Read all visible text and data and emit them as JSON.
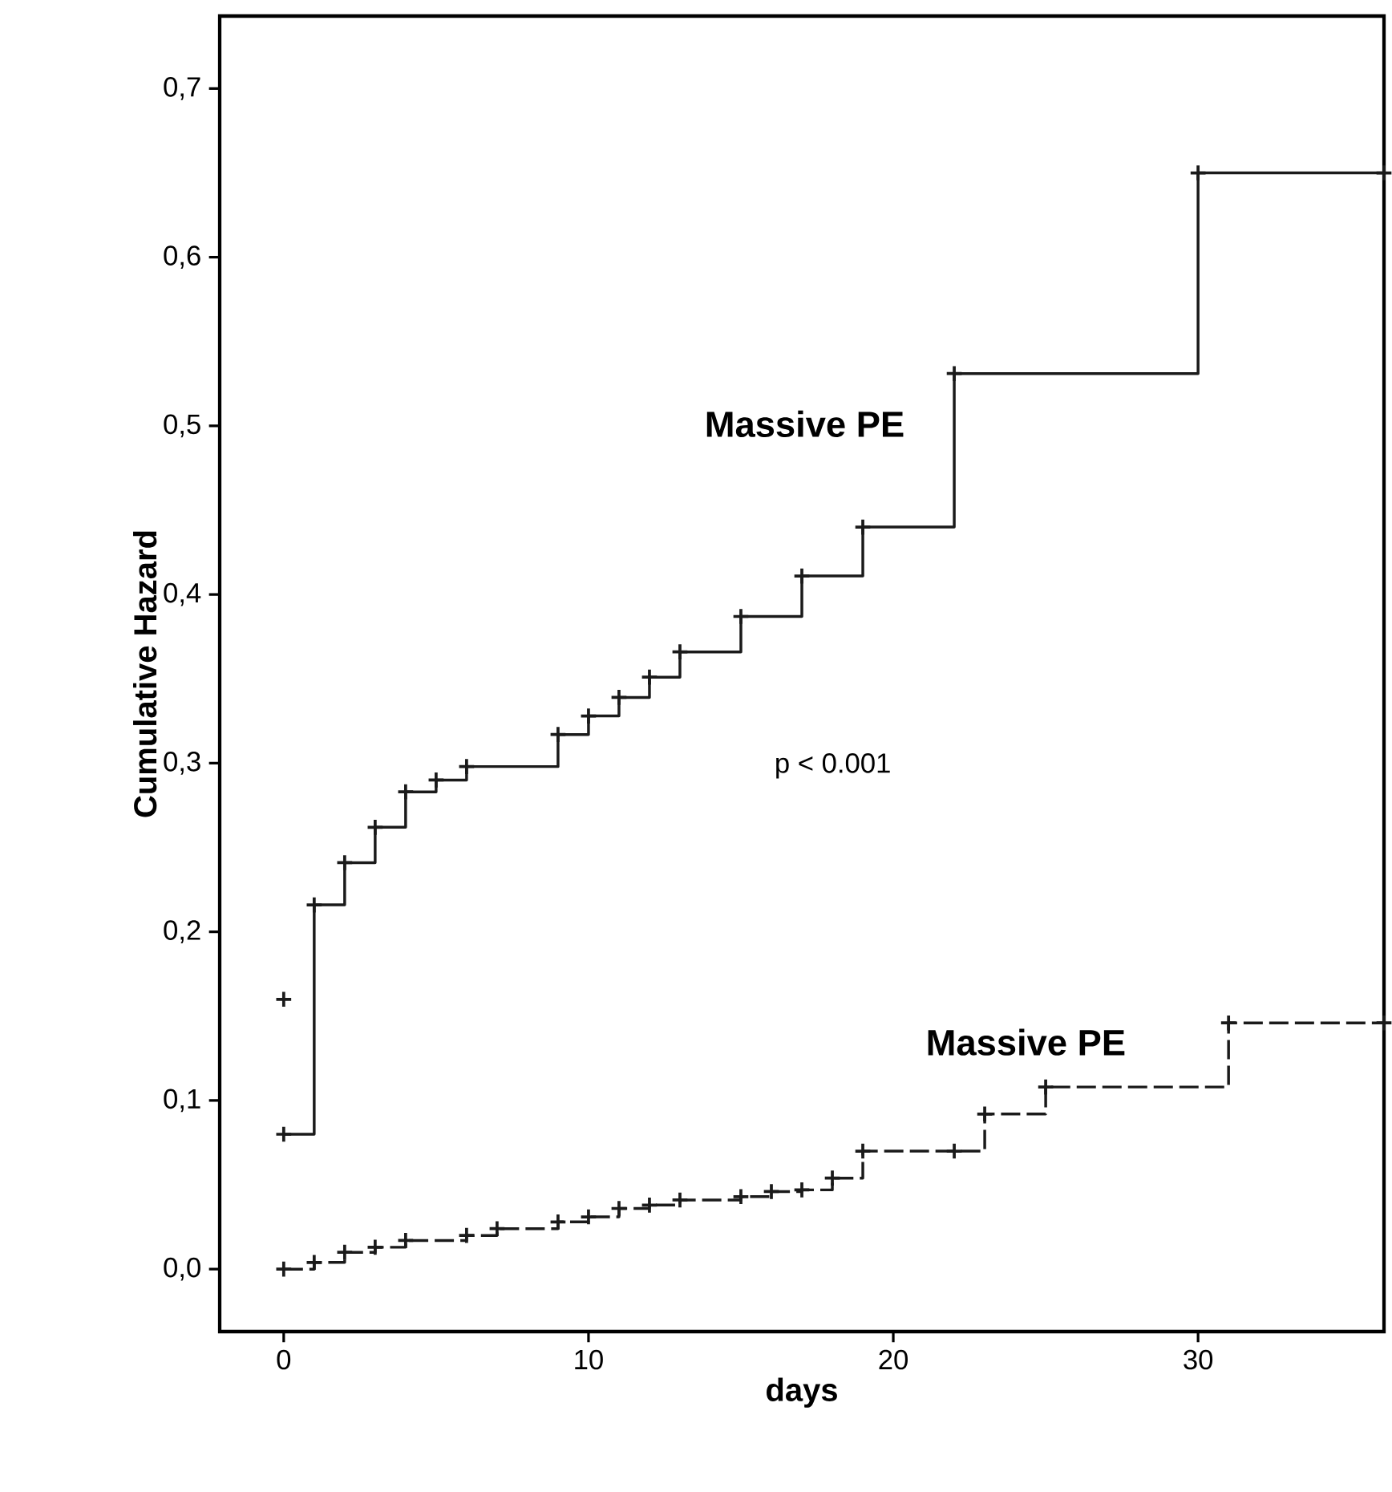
{
  "chart_data": {
    "type": "step",
    "xlabel": "days",
    "ylabel": "Cumulative Hazard",
    "xlim": [
      -2.1,
      36.1
    ],
    "ylim": [
      -0.037,
      0.743
    ],
    "xticks": [
      0,
      10,
      20,
      30
    ],
    "yticks": [
      {
        "value": 0,
        "label": "0,0"
      },
      {
        "value": 0.1,
        "label": "0,1"
      },
      {
        "value": 0.2,
        "label": "0,2"
      },
      {
        "value": 0.3,
        "label": "0,3"
      },
      {
        "value": 0.4,
        "label": "0,4"
      },
      {
        "value": 0.5,
        "label": "0,5"
      },
      {
        "value": 0.6,
        "label": "0,6"
      },
      {
        "value": 0.7,
        "label": "0,7"
      }
    ],
    "grid": false,
    "marker": "cross",
    "series": [
      {
        "name": "Massive PE",
        "color": "#1a1a1a",
        "line_style": "solid",
        "x": [
          0,
          1,
          2,
          3,
          4,
          5,
          6,
          9,
          10,
          11,
          12,
          13,
          15,
          17,
          19,
          22,
          30,
          36.1
        ],
        "values": [
          0.08,
          0.216,
          0.241,
          0.262,
          0.283,
          0.29,
          0.298,
          0.317,
          0.328,
          0.339,
          0.351,
          0.366,
          0.387,
          0.411,
          0.44,
          0.531,
          0.65,
          0.65
        ]
      },
      {
        "name": "Massive PE",
        "color": "#1a1a1a",
        "line_style": "dashed",
        "x": [
          0,
          1,
          2,
          3,
          4,
          6,
          7,
          9,
          10,
          11,
          12,
          13,
          15,
          16,
          17,
          18,
          19,
          22,
          23,
          25,
          31,
          36.1
        ],
        "values": [
          0,
          0.004,
          0.01,
          0.013,
          0.017,
          0.02,
          0.024,
          0.028,
          0.031,
          0.036,
          0.038,
          0.041,
          0.043,
          0.046,
          0.047,
          0.054,
          0.07,
          0.07,
          0.092,
          0.108,
          0.146,
          0.146
        ]
      },
      {
        "type": "scatter",
        "color": "#1a1a1a",
        "x": [
          0
        ],
        "values": [
          0.16
        ]
      }
    ],
    "annotations": [
      "p < 0.001"
    ]
  }
}
